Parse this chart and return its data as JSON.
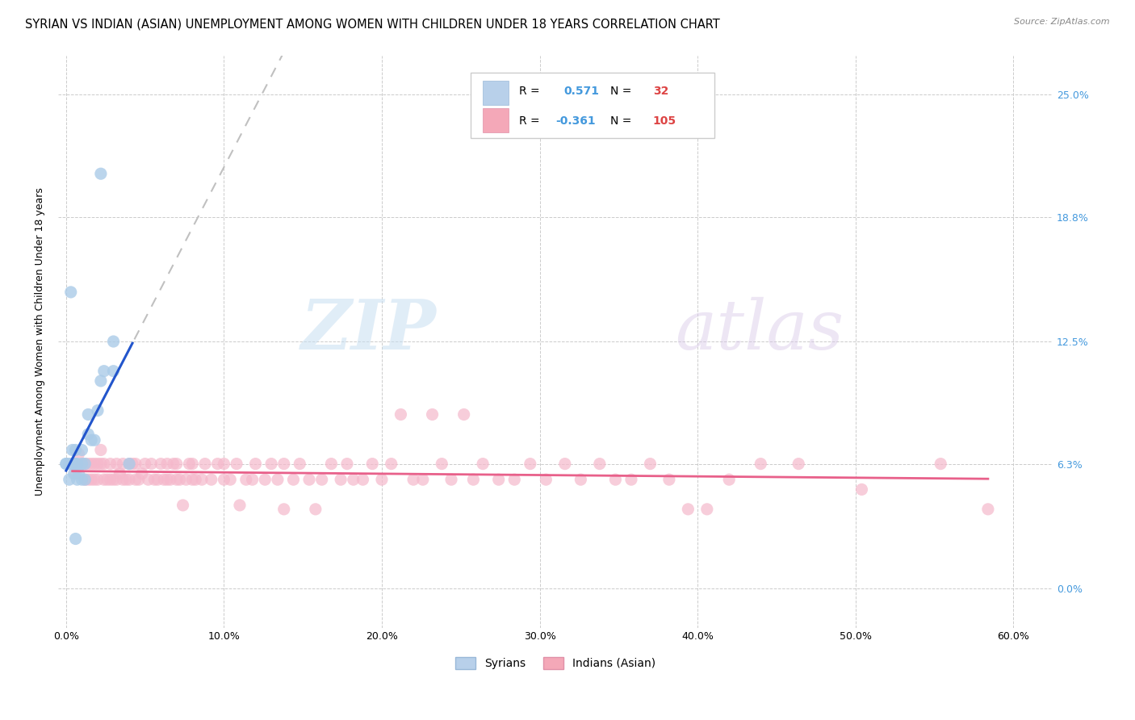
{
  "title": "SYRIAN VS INDIAN (ASIAN) UNEMPLOYMENT AMONG WOMEN WITH CHILDREN UNDER 18 YEARS CORRELATION CHART",
  "source": "Source: ZipAtlas.com",
  "ylabel": "Unemployment Among Women with Children Under 18 years",
  "xlabel_ticks": [
    "0.0%",
    "10.0%",
    "20.0%",
    "30.0%",
    "40.0%",
    "50.0%",
    "60.0%"
  ],
  "xlabel_vals": [
    0.0,
    0.1,
    0.2,
    0.3,
    0.4,
    0.5,
    0.6
  ],
  "ytick_labels": [
    "0.0%",
    "6.3%",
    "12.5%",
    "18.8%",
    "25.0%"
  ],
  "ytick_vals": [
    0.0,
    0.063,
    0.125,
    0.188,
    0.25
  ],
  "ylim": [
    -0.02,
    0.27
  ],
  "xlim": [
    -0.005,
    0.625
  ],
  "watermark_zip": "ZIP",
  "watermark_atlas": "atlas",
  "syrian_color": "#aacbe8",
  "indian_color": "#f5b8cb",
  "syrian_line_color": "#2255cc",
  "indian_line_color": "#e8608a",
  "dash_line_color": "#c0c0c0",
  "title_fontsize": 10.5,
  "axis_label_fontsize": 9,
  "tick_fontsize": 9,
  "right_ytick_color": "#4499dd",
  "grid_color": "#cccccc",
  "background_color": "#ffffff",
  "syrian_points": [
    [
      0.0,
      0.063
    ],
    [
      0.0,
      0.063
    ],
    [
      0.002,
      0.063
    ],
    [
      0.002,
      0.055
    ],
    [
      0.003,
      0.15
    ],
    [
      0.004,
      0.063
    ],
    [
      0.004,
      0.07
    ],
    [
      0.005,
      0.058
    ],
    [
      0.005,
      0.063
    ],
    [
      0.005,
      0.063
    ],
    [
      0.006,
      0.063
    ],
    [
      0.006,
      0.07
    ],
    [
      0.007,
      0.055
    ],
    [
      0.007,
      0.063
    ],
    [
      0.008,
      0.058
    ],
    [
      0.01,
      0.063
    ],
    [
      0.01,
      0.07
    ],
    [
      0.01,
      0.055
    ],
    [
      0.012,
      0.063
    ],
    [
      0.012,
      0.055
    ],
    [
      0.014,
      0.078
    ],
    [
      0.014,
      0.088
    ],
    [
      0.016,
      0.075
    ],
    [
      0.018,
      0.075
    ],
    [
      0.02,
      0.09
    ],
    [
      0.022,
      0.105
    ],
    [
      0.022,
      0.21
    ],
    [
      0.024,
      0.11
    ],
    [
      0.03,
      0.125
    ],
    [
      0.03,
      0.11
    ],
    [
      0.04,
      0.063
    ],
    [
      0.006,
      0.025
    ]
  ],
  "indian_points": [
    [
      0.004,
      0.063
    ],
    [
      0.006,
      0.058
    ],
    [
      0.008,
      0.068
    ],
    [
      0.01,
      0.063
    ],
    [
      0.012,
      0.063
    ],
    [
      0.012,
      0.055
    ],
    [
      0.014,
      0.063
    ],
    [
      0.014,
      0.055
    ],
    [
      0.016,
      0.063
    ],
    [
      0.016,
      0.055
    ],
    [
      0.018,
      0.063
    ],
    [
      0.018,
      0.055
    ],
    [
      0.02,
      0.063
    ],
    [
      0.02,
      0.055
    ],
    [
      0.022,
      0.063
    ],
    [
      0.022,
      0.07
    ],
    [
      0.024,
      0.055
    ],
    [
      0.024,
      0.063
    ],
    [
      0.026,
      0.055
    ],
    [
      0.028,
      0.063
    ],
    [
      0.028,
      0.055
    ],
    [
      0.03,
      0.055
    ],
    [
      0.032,
      0.063
    ],
    [
      0.032,
      0.055
    ],
    [
      0.034,
      0.058
    ],
    [
      0.036,
      0.055
    ],
    [
      0.036,
      0.063
    ],
    [
      0.038,
      0.055
    ],
    [
      0.04,
      0.063
    ],
    [
      0.04,
      0.055
    ],
    [
      0.042,
      0.063
    ],
    [
      0.044,
      0.055
    ],
    [
      0.044,
      0.063
    ],
    [
      0.046,
      0.055
    ],
    [
      0.048,
      0.058
    ],
    [
      0.05,
      0.063
    ],
    [
      0.052,
      0.055
    ],
    [
      0.054,
      0.063
    ],
    [
      0.056,
      0.055
    ],
    [
      0.058,
      0.055
    ],
    [
      0.06,
      0.063
    ],
    [
      0.062,
      0.055
    ],
    [
      0.064,
      0.055
    ],
    [
      0.064,
      0.063
    ],
    [
      0.066,
      0.055
    ],
    [
      0.068,
      0.063
    ],
    [
      0.07,
      0.055
    ],
    [
      0.07,
      0.063
    ],
    [
      0.072,
      0.055
    ],
    [
      0.074,
      0.042
    ],
    [
      0.076,
      0.055
    ],
    [
      0.078,
      0.063
    ],
    [
      0.08,
      0.055
    ],
    [
      0.08,
      0.063
    ],
    [
      0.082,
      0.055
    ],
    [
      0.086,
      0.055
    ],
    [
      0.088,
      0.063
    ],
    [
      0.092,
      0.055
    ],
    [
      0.096,
      0.063
    ],
    [
      0.1,
      0.055
    ],
    [
      0.1,
      0.063
    ],
    [
      0.104,
      0.055
    ],
    [
      0.108,
      0.063
    ],
    [
      0.11,
      0.042
    ],
    [
      0.114,
      0.055
    ],
    [
      0.118,
      0.055
    ],
    [
      0.12,
      0.063
    ],
    [
      0.126,
      0.055
    ],
    [
      0.13,
      0.063
    ],
    [
      0.134,
      0.055
    ],
    [
      0.138,
      0.063
    ],
    [
      0.138,
      0.04
    ],
    [
      0.144,
      0.055
    ],
    [
      0.148,
      0.063
    ],
    [
      0.154,
      0.055
    ],
    [
      0.158,
      0.04
    ],
    [
      0.162,
      0.055
    ],
    [
      0.168,
      0.063
    ],
    [
      0.174,
      0.055
    ],
    [
      0.178,
      0.063
    ],
    [
      0.182,
      0.055
    ],
    [
      0.188,
      0.055
    ],
    [
      0.194,
      0.063
    ],
    [
      0.2,
      0.055
    ],
    [
      0.206,
      0.063
    ],
    [
      0.212,
      0.088
    ],
    [
      0.22,
      0.055
    ],
    [
      0.226,
      0.055
    ],
    [
      0.232,
      0.088
    ],
    [
      0.238,
      0.063
    ],
    [
      0.244,
      0.055
    ],
    [
      0.252,
      0.088
    ],
    [
      0.258,
      0.055
    ],
    [
      0.264,
      0.063
    ],
    [
      0.274,
      0.055
    ],
    [
      0.284,
      0.055
    ],
    [
      0.294,
      0.063
    ],
    [
      0.304,
      0.055
    ],
    [
      0.316,
      0.063
    ],
    [
      0.326,
      0.055
    ],
    [
      0.338,
      0.063
    ],
    [
      0.348,
      0.055
    ],
    [
      0.358,
      0.055
    ],
    [
      0.37,
      0.063
    ],
    [
      0.382,
      0.055
    ],
    [
      0.394,
      0.04
    ],
    [
      0.406,
      0.04
    ],
    [
      0.42,
      0.055
    ],
    [
      0.44,
      0.063
    ],
    [
      0.464,
      0.063
    ],
    [
      0.504,
      0.05
    ],
    [
      0.554,
      0.063
    ],
    [
      0.584,
      0.04
    ]
  ]
}
